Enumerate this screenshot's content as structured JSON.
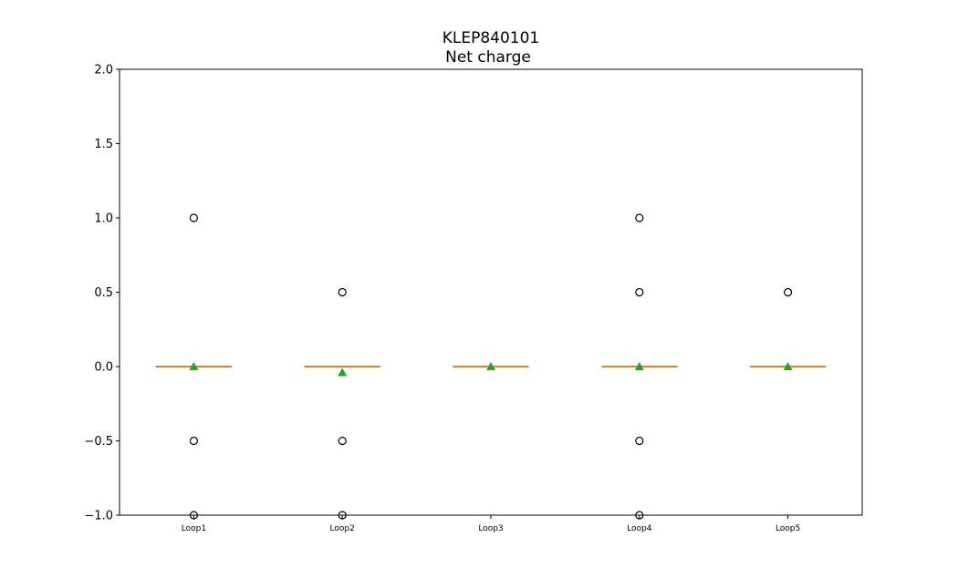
{
  "chart_data": {
    "type": "box",
    "title": "KLEP840101",
    "subtitle": "Net charge",
    "xlabel": "",
    "ylabel": "",
    "ylim": [
      -1.0,
      2.0
    ],
    "yticks": [
      -1.0,
      -0.5,
      0.0,
      0.5,
      1.0,
      1.5,
      2.0
    ],
    "ytick_labels": [
      "−1.0",
      "−0.5",
      "0.0",
      "0.5",
      "1.0",
      "1.5",
      "2.0"
    ],
    "grid": false,
    "categories": [
      "Loop1",
      "Loop2",
      "Loop3",
      "Loop4",
      "Loop5"
    ],
    "boxes": [
      {
        "label": "Loop1",
        "q1": 0.0,
        "median": 0.0,
        "q3": 0.0,
        "whisker_low": 0.0,
        "whisker_high": 0.0,
        "mean": 0.0,
        "outliers": [
          1.0,
          -0.5,
          -1.0
        ]
      },
      {
        "label": "Loop2",
        "q1": 0.0,
        "median": 0.0,
        "q3": 0.0,
        "whisker_low": 0.0,
        "whisker_high": 0.0,
        "mean": -0.04,
        "outliers": [
          0.5,
          -0.5,
          -1.0
        ]
      },
      {
        "label": "Loop3",
        "q1": 0.0,
        "median": 0.0,
        "q3": 0.0,
        "whisker_low": 0.0,
        "whisker_high": 0.0,
        "mean": 0.0,
        "outliers": []
      },
      {
        "label": "Loop4",
        "q1": 0.0,
        "median": 0.0,
        "q3": 0.0,
        "whisker_low": 0.0,
        "whisker_high": 0.0,
        "mean": 0.0,
        "outliers": [
          1.0,
          0.5,
          -0.5,
          -1.0
        ]
      },
      {
        "label": "Loop5",
        "q1": 0.0,
        "median": 0.0,
        "q3": 0.0,
        "whisker_low": 0.0,
        "whisker_high": 0.0,
        "mean": 0.0,
        "outliers": [
          0.5
        ]
      }
    ],
    "colors": {
      "median": "#ff7f0e",
      "box": "#000000",
      "mean_marker": "#2ca02c",
      "outlier_edge": "#000000"
    }
  }
}
